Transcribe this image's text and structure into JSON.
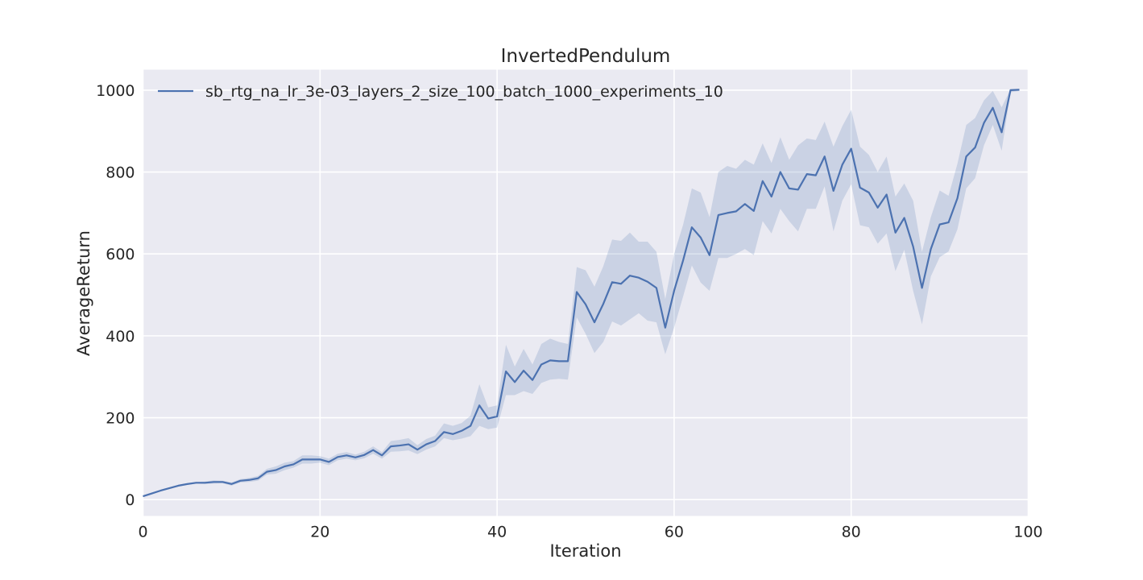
{
  "colors": {
    "plot_background": "#eaeaf2",
    "grid": "#ffffff",
    "line": "#4c72b0",
    "band": "#4c72b0"
  },
  "chart_data": {
    "type": "line",
    "title": "InvertedPendulum",
    "xlabel": "Iteration",
    "ylabel": "AverageReturn",
    "xlim": [
      0,
      100
    ],
    "ylim": [
      -40,
      1050
    ],
    "xticks": [
      0,
      20,
      40,
      60,
      80,
      100
    ],
    "yticks": [
      0,
      200,
      400,
      600,
      800,
      1000
    ],
    "grid": true,
    "legend_position": "upper-left",
    "series": [
      {
        "name": "sb_rtg_na_lr_3e-03_layers_2_size_100_batch_1000_experiments_10",
        "x": [
          0,
          1,
          2,
          3,
          4,
          5,
          6,
          7,
          8,
          9,
          10,
          11,
          12,
          13,
          14,
          15,
          16,
          17,
          18,
          19,
          20,
          21,
          22,
          23,
          24,
          25,
          26,
          27,
          28,
          29,
          30,
          31,
          32,
          33,
          34,
          35,
          36,
          37,
          38,
          39,
          40,
          41,
          42,
          43,
          44,
          45,
          46,
          47,
          48,
          49,
          50,
          51,
          52,
          53,
          54,
          55,
          56,
          57,
          58,
          59,
          60,
          61,
          62,
          63,
          64,
          65,
          66,
          67,
          68,
          69,
          70,
          71,
          72,
          73,
          74,
          75,
          76,
          77,
          78,
          79,
          80,
          81,
          82,
          83,
          84,
          85,
          86,
          87,
          88,
          89,
          90,
          91,
          92,
          93,
          94,
          95,
          96,
          97,
          98,
          99
        ],
        "y": [
          8,
          15,
          22,
          28,
          34,
          38,
          41,
          41,
          43,
          43,
          38,
          46,
          48,
          52,
          68,
          72,
          81,
          86,
          98,
          98,
          98,
          92,
          104,
          108,
          103,
          109,
          121,
          108,
          130,
          132,
          135,
          122,
          135,
          143,
          165,
          160,
          168,
          180,
          230,
          198,
          203,
          313,
          287,
          315,
          292,
          330,
          340,
          338,
          338,
          507,
          477,
          433,
          478,
          531,
          527,
          547,
          542,
          532,
          517,
          420,
          510,
          583,
          665,
          640,
          597,
          695,
          700,
          704,
          722,
          705,
          778,
          740,
          800,
          760,
          757,
          795,
          792,
          838,
          754,
          818,
          857,
          762,
          750,
          713,
          745,
          652,
          688,
          618,
          517,
          612,
          672,
          677,
          736,
          838,
          860,
          920,
          957,
          897,
          1000,
          1001
        ],
        "y_upper": [
          10,
          17,
          24,
          30,
          36,
          40,
          43,
          44,
          47,
          46,
          42,
          50,
          53,
          58,
          75,
          81,
          90,
          94,
          108,
          108,
          106,
          100,
          112,
          116,
          110,
          117,
          130,
          116,
          143,
          146,
          150,
          133,
          148,
          156,
          186,
          180,
          187,
          205,
          282,
          225,
          230,
          378,
          325,
          368,
          330,
          380,
          393,
          385,
          380,
          568,
          560,
          520,
          570,
          635,
          632,
          652,
          630,
          630,
          605,
          490,
          600,
          670,
          760,
          750,
          690,
          800,
          815,
          808,
          830,
          818,
          870,
          822,
          885,
          830,
          865,
          882,
          878,
          923,
          862,
          912,
          952,
          862,
          842,
          800,
          838,
          740,
          772,
          730,
          605,
          690,
          755,
          742,
          820,
          915,
          932,
          975,
          998,
          958,
          1002,
          1003
        ],
        "y_lower": [
          6,
          13,
          20,
          26,
          32,
          36,
          39,
          38,
          39,
          40,
          34,
          42,
          43,
          46,
          61,
          63,
          72,
          78,
          88,
          88,
          90,
          84,
          96,
          100,
          96,
          101,
          112,
          100,
          117,
          118,
          120,
          111,
          122,
          130,
          150,
          145,
          149,
          155,
          180,
          172,
          176,
          255,
          255,
          265,
          258,
          285,
          293,
          295,
          293,
          445,
          405,
          358,
          385,
          435,
          425,
          440,
          455,
          437,
          433,
          355,
          420,
          495,
          572,
          530,
          510,
          590,
          590,
          600,
          612,
          597,
          680,
          650,
          710,
          680,
          655,
          710,
          710,
          765,
          655,
          730,
          770,
          670,
          665,
          625,
          650,
          558,
          610,
          510,
          428,
          545,
          592,
          606,
          660,
          760,
          785,
          865,
          915,
          852,
          995,
          998
        ]
      }
    ]
  }
}
